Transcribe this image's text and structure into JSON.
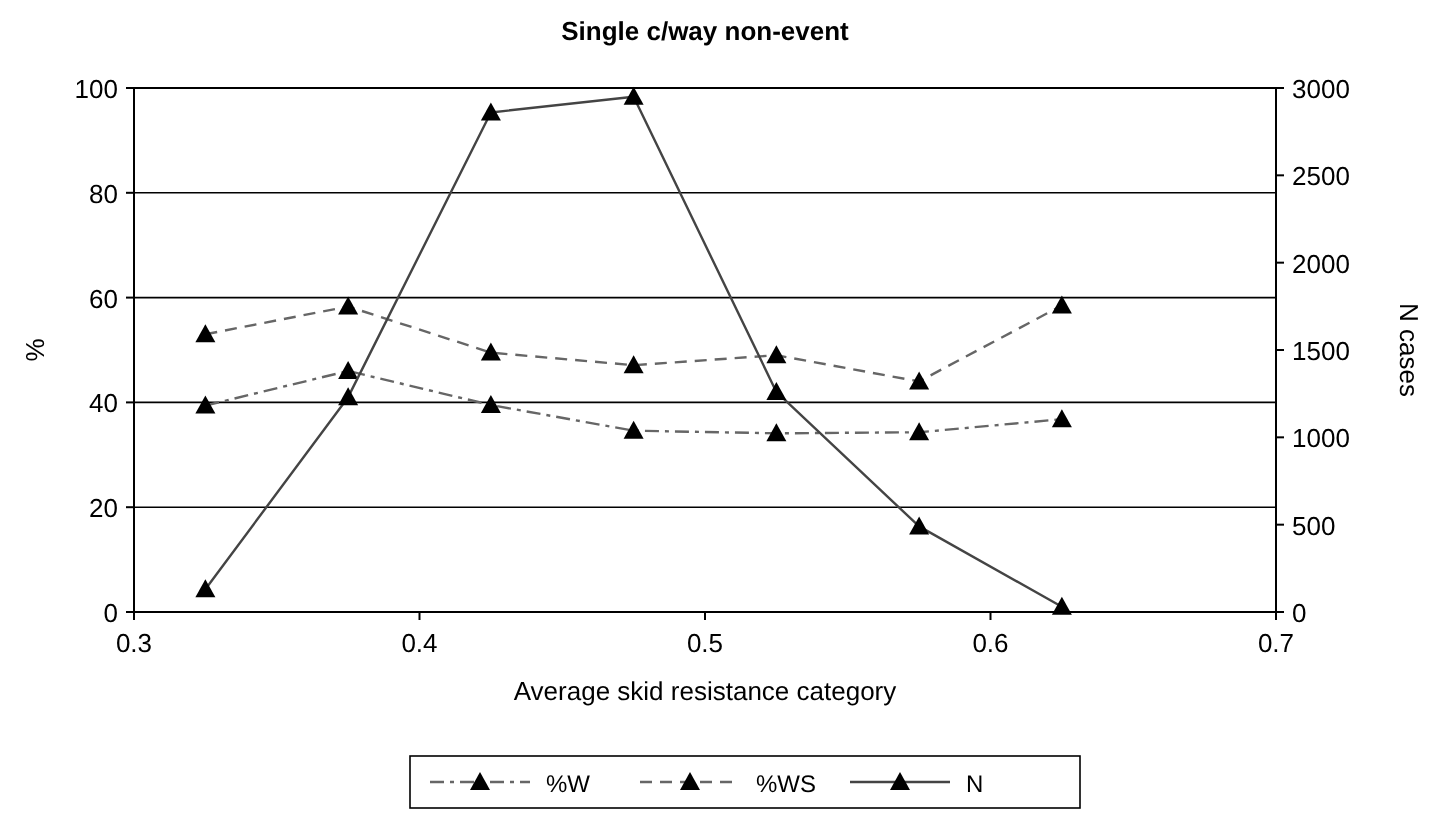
{
  "chart_data": {
    "type": "line",
    "title": "Single c/way non-event",
    "xlabel": "Average skid resistance category",
    "ylabel": "%",
    "y2label": "N cases",
    "x": [
      0.325,
      0.375,
      0.425,
      0.475,
      0.525,
      0.575,
      0.625
    ],
    "xlim": [
      0.3,
      0.7
    ],
    "xticks": [
      0.3,
      0.4,
      0.5,
      0.6,
      0.7
    ],
    "ylim": [
      0,
      100
    ],
    "yticks": [
      0,
      20,
      40,
      60,
      80,
      100
    ],
    "y2lim": [
      0,
      3000
    ],
    "y2ticks": [
      0,
      500,
      1000,
      1500,
      2000,
      2500,
      3000
    ],
    "grid": "y",
    "legend": "bottom",
    "marker": "triangle",
    "series": [
      {
        "name": "%W",
        "color": "#666666",
        "line_style": "dashdot",
        "values": [
          39.4,
          46,
          39.5,
          34.6,
          34.1,
          34.3,
          36.8
        ]
      },
      {
        "name": "%WS",
        "color": "#666666",
        "line_style": "dashed",
        "values": [
          53,
          58.3,
          49.5,
          47.1,
          49,
          44,
          58.5
        ]
      },
      {
        "name": "N",
        "color": "#444444",
        "line_style": "solid",
        "axis": "y2",
        "values": [
          130,
          1230,
          2860,
          2950,
          1260,
          490,
          30
        ]
      }
    ]
  }
}
